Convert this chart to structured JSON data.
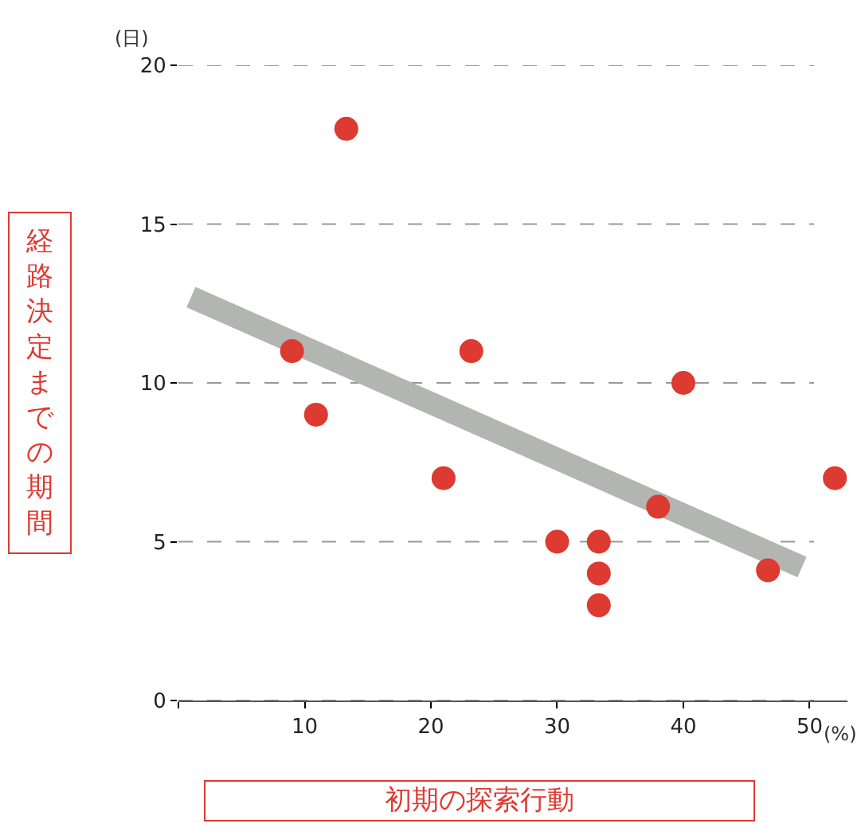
{
  "chart_data": {
    "type": "scatter",
    "xlabel": "初期の探索行動",
    "ylabel": "経路決定までの期間",
    "annotations": [
      "(日)",
      "(%)"
    ],
    "series": [
      {
        "marker": "circle",
        "color": "#dd3a31",
        "x": [
          9,
          13.3,
          10.9,
          21,
          23.2,
          30,
          33.3,
          33.3,
          33.3,
          38,
          40,
          46.7,
          52
        ],
        "values": [
          11,
          18,
          9,
          7,
          11,
          5,
          5,
          4,
          3,
          6.1,
          10,
          4.1,
          7
        ]
      },
      {
        "type": "line",
        "color": "#b3b5b3",
        "x": [
          1,
          49.4
        ],
        "values": [
          12.7,
          4.2
        ]
      }
    ],
    "xlim": [
      0,
      53
    ],
    "xticks": [
      {
        "value": 0,
        "label": null
      },
      10,
      20,
      30,
      40,
      50
    ],
    "ylim": [
      0,
      20
    ],
    "yticks": [
      0,
      5,
      10,
      15,
      20
    ],
    "grid": "y"
  }
}
